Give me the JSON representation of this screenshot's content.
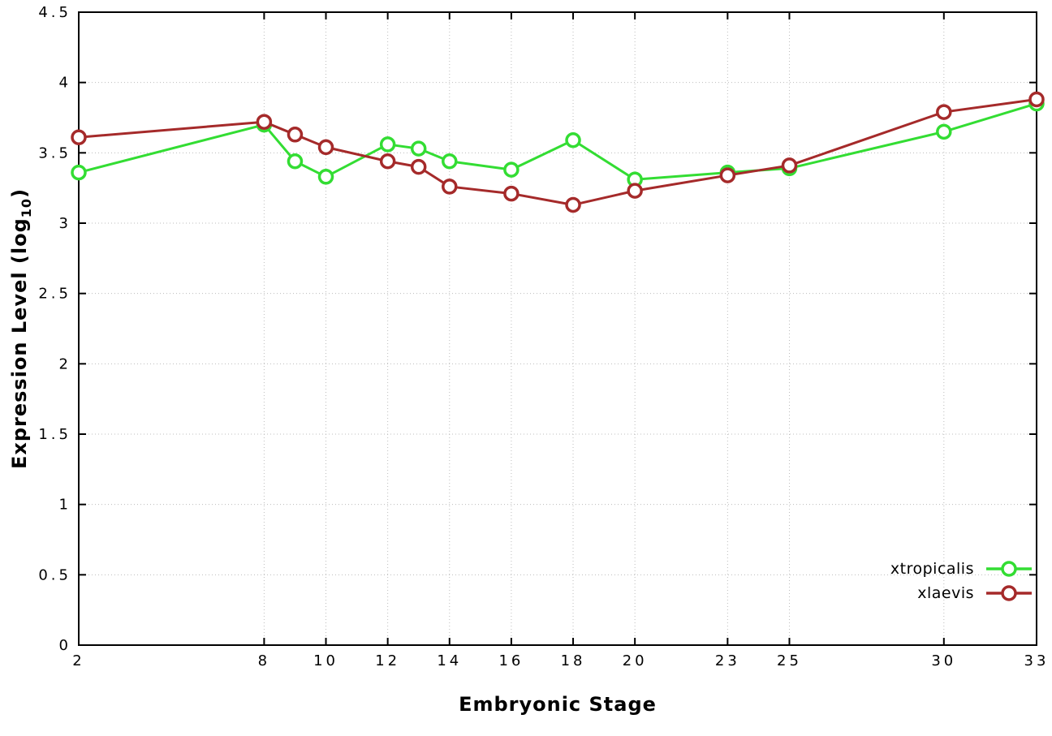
{
  "chart_data": {
    "type": "line",
    "title": "",
    "xlabel": "Embryonic Stage",
    "ylabel_prefix": "Expression Level (log",
    "ylabel_sub": "10",
    "ylabel_suffix": ")",
    "xlim": [
      2,
      33
    ],
    "ylim": [
      0,
      4.5
    ],
    "xticks": [
      2,
      8,
      10,
      12,
      14,
      16,
      18,
      20,
      23,
      25,
      30,
      33
    ],
    "yticks": [
      0,
      0.5,
      1,
      1.5,
      2,
      2.5,
      3,
      3.5,
      4,
      4.5
    ],
    "grid": true,
    "legend_position": "bottom-right",
    "x": [
      2,
      8,
      9,
      10,
      12,
      13,
      14,
      16,
      18,
      20,
      23,
      25,
      30,
      33
    ],
    "series": [
      {
        "name": "xtropicalis",
        "color": "#33dd33",
        "values": [
          3.36,
          3.7,
          3.44,
          3.33,
          3.56,
          3.53,
          3.44,
          3.38,
          3.59,
          3.31,
          3.36,
          3.39,
          3.65,
          3.85
        ]
      },
      {
        "name": "xlaevis",
        "color": "#a52a2a",
        "values": [
          3.61,
          3.72,
          3.63,
          3.54,
          3.44,
          3.4,
          3.26,
          3.21,
          3.13,
          3.23,
          3.34,
          3.41,
          3.79,
          3.88
        ]
      }
    ]
  }
}
